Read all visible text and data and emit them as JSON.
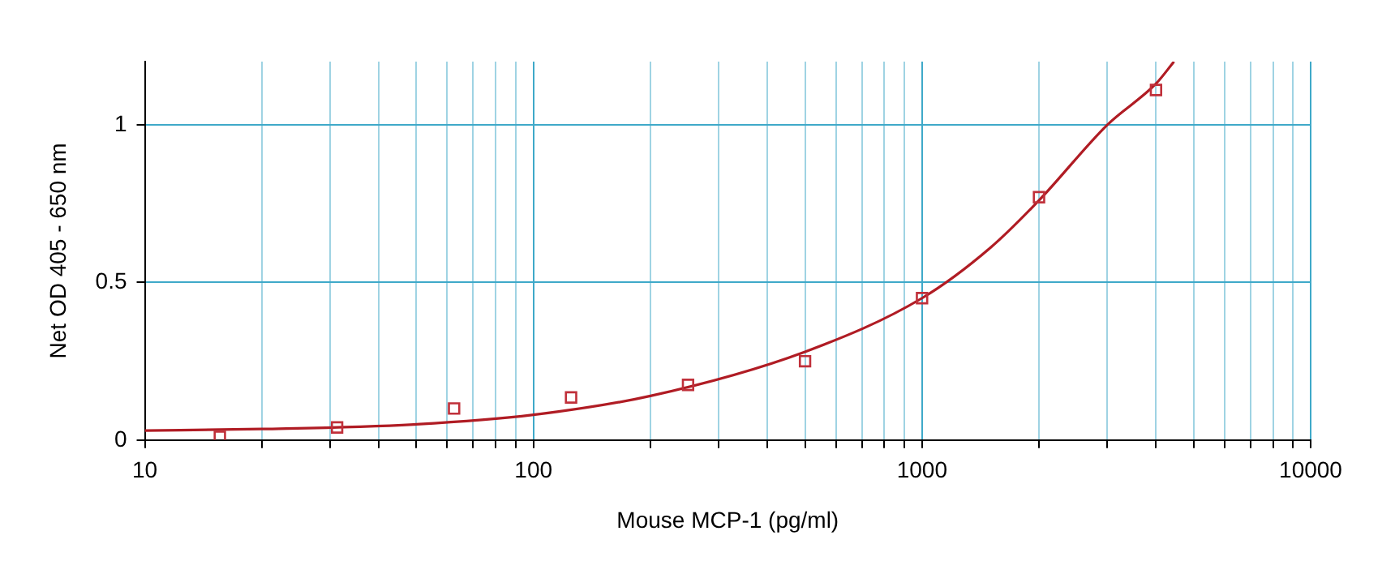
{
  "chart_data": {
    "type": "scatter",
    "xlabel": "Mouse MCP-1 (pg/ml)",
    "ylabel": "Net OD 405 - 650 nm",
    "log": "x",
    "grid": true,
    "legend": false,
    "xlim": [
      10,
      10000
    ],
    "ylim": [
      0,
      1.2
    ],
    "xticks": [
      10,
      {
        "value": 20,
        "label": null
      },
      {
        "value": 30,
        "label": null
      },
      {
        "value": 40,
        "label": null
      },
      {
        "value": 50,
        "label": null
      },
      {
        "value": 60,
        "label": null
      },
      {
        "value": 70,
        "label": null
      },
      {
        "value": 80,
        "label": null
      },
      {
        "value": 90,
        "label": null
      },
      100,
      {
        "value": 200,
        "label": null
      },
      {
        "value": 300,
        "label": null
      },
      {
        "value": 400,
        "label": null
      },
      {
        "value": 500,
        "label": null
      },
      {
        "value": 600,
        "label": null
      },
      {
        "value": 700,
        "label": null
      },
      {
        "value": 800,
        "label": null
      },
      {
        "value": 900,
        "label": null
      },
      1000,
      {
        "value": 2000,
        "label": null
      },
      {
        "value": 3000,
        "label": null
      },
      {
        "value": 4000,
        "label": null
      },
      {
        "value": 5000,
        "label": null
      },
      {
        "value": 6000,
        "label": null
      },
      {
        "value": 7000,
        "label": null
      },
      {
        "value": 8000,
        "label": null
      },
      {
        "value": 9000,
        "label": null
      },
      10000
    ],
    "yticks": [
      0,
      0.5,
      1
    ],
    "series": [
      {
        "type": "scatter",
        "marker": "square",
        "color": "#c0303a",
        "x": [
          15.6,
          31.25,
          62.5,
          125,
          250,
          500,
          1000,
          2000,
          4000
        ],
        "values": [
          0.01,
          0.04,
          0.1,
          0.135,
          0.175,
          0.25,
          0.45,
          0.77,
          1.11
        ]
      },
      {
        "type": "line",
        "marker": "none",
        "line_style": "solid",
        "color": "#b01c24",
        "x": [
          10,
          20,
          50,
          100,
          200,
          500,
          1000,
          1500,
          2000,
          3000,
          4000,
          4450
        ],
        "values": [
          0.03,
          0.035,
          0.05,
          0.08,
          0.14,
          0.28,
          0.45,
          0.61,
          0.76,
          1.0,
          1.13,
          1.2
        ]
      }
    ]
  }
}
